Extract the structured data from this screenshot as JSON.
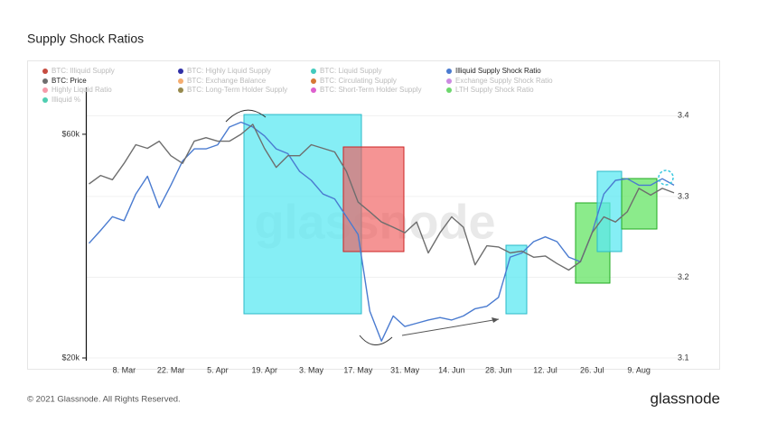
{
  "chart_data": {
    "type": "line",
    "title": "Supply Shock Ratios",
    "watermark": "glassnode",
    "categories": [
      null,
      null,
      null,
      "8. Mar",
      null,
      null,
      null,
      "22. Mar",
      null,
      null,
      null,
      "5. Apr",
      null,
      null,
      null,
      "19. Apr",
      null,
      null,
      null,
      "3. May",
      null,
      null,
      null,
      "17. May",
      null,
      null,
      null,
      "31. May",
      null,
      null,
      null,
      "14. Jun",
      null,
      null,
      null,
      "28. Jun",
      null,
      null,
      null,
      "12. Jul",
      null,
      null,
      null,
      "26. Jul",
      null,
      null,
      null,
      "9. Aug",
      null,
      null,
      null
    ],
    "series": [
      {
        "name": "BTC: Illiquid Supply",
        "color": "#c0392b"
      },
      {
        "name": "BTC: Highly Liquid Supply",
        "color": "#1a1a9c"
      },
      {
        "name": "BTC: Liquid Supply",
        "color": "#2ec4b6"
      },
      {
        "name": "Illiquid Supply Shock Ratio",
        "color": "#4a7bd0",
        "axis": "y2",
        "values": [
          3.242,
          3.258,
          3.275,
          3.27,
          3.303,
          3.325,
          3.286,
          3.314,
          3.344,
          3.359,
          3.359,
          3.364,
          3.386,
          3.392,
          3.386,
          3.375,
          3.359,
          3.353,
          3.331,
          3.32,
          3.303,
          3.297,
          3.275,
          3.253,
          3.158,
          3.121,
          3.152,
          3.139,
          3.143,
          3.147,
          3.15,
          3.147,
          3.152,
          3.161,
          3.164,
          3.175,
          3.225,
          3.23,
          3.244,
          3.25,
          3.244,
          3.225,
          3.219,
          3.255,
          3.303,
          3.32,
          3.322,
          3.314,
          3.314,
          3.322,
          3.314
        ]
      },
      {
        "name": "BTC: Price",
        "color": "#6e6e6e",
        "axis": "y",
        "values": [
          47000,
          49000,
          48000,
          52000,
          57000,
          56000,
          58000,
          54000,
          52000,
          58000,
          59000,
          58000,
          58000,
          60000,
          63000,
          56000,
          51000,
          54000,
          54000,
          57000,
          56000,
          55000,
          50000,
          43000,
          41000,
          39000,
          38000,
          37000,
          39000,
          33500,
          37000,
          40000,
          38000,
          31600,
          34700,
          34500,
          33500,
          33800,
          32800,
          33000,
          31800,
          30800,
          32100,
          37000,
          40000,
          39000,
          41000,
          46000,
          44500,
          46000,
          45000
        ]
      },
      {
        "name": "BTC: Exchange Balance",
        "color": "#f4a460"
      },
      {
        "name": "BTC: Circulating Supply",
        "color": "#d2691e"
      },
      {
        "name": "Exchange Supply Shock Ratio",
        "color": "#c77dde"
      },
      {
        "name": "Highly Liquid Ratio",
        "color": "#f58fa0"
      },
      {
        "name": "BTC: Long-Term Holder Supply",
        "color": "#8b7d3a"
      },
      {
        "name": "BTC: Short-Term Holder Supply",
        "color": "#d94fc9"
      },
      {
        "name": "LTH Supply Shock Ratio",
        "color": "#5dd35d"
      },
      {
        "name": "Illiquid %",
        "color": "#3cc9a8"
      }
    ],
    "yscale": "log",
    "ylim": [
      20000,
      75500
    ],
    "yticks": [
      {
        "value": 60000,
        "label": "$60k"
      },
      {
        "value": 20000,
        "label": "$20k"
      }
    ],
    "y2lim": [
      3.1,
      3.435
    ],
    "y2ticks": [
      3.4,
      3.3,
      3.2,
      3.1
    ],
    "grid": true
  },
  "footer": {
    "copyright": "© 2021 Glassnode. All Rights Reserved.",
    "logo": "glassnode"
  }
}
